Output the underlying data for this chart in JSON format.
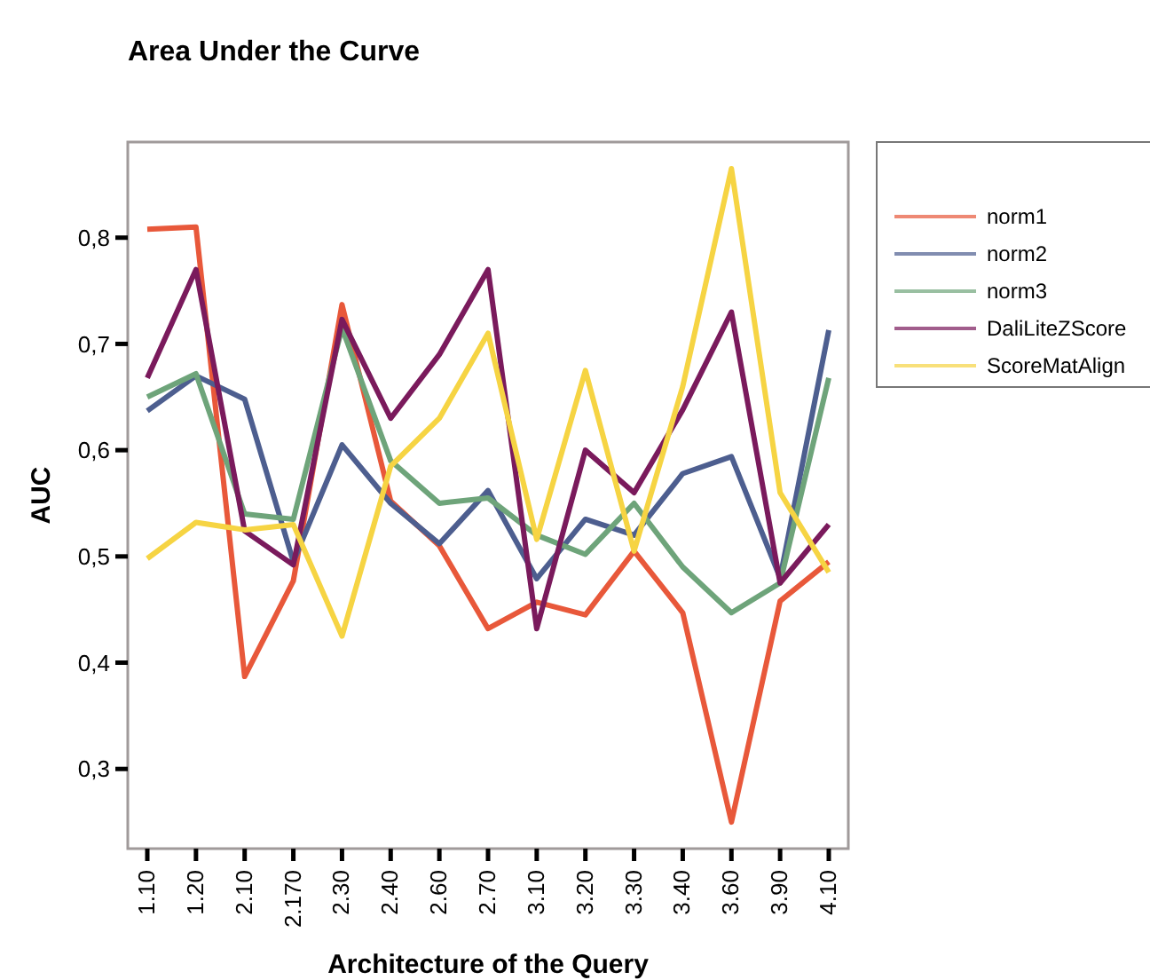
{
  "chart_data": {
    "type": "line",
    "title": "Area Under the Curve",
    "xlabel": "Architecture of the Query",
    "ylabel": "AUC",
    "categories": [
      "1.10",
      "1.20",
      "2.10",
      "2.170",
      "2.30",
      "2.40",
      "2.60",
      "2.70",
      "3.10",
      "3.20",
      "3.30",
      "3.40",
      "3.60",
      "3.90",
      "4.10"
    ],
    "ylim": [
      0.225,
      0.89
    ],
    "yticks": [
      {
        "value": 0.3,
        "label": "0,3"
      },
      {
        "value": 0.4,
        "label": "0,4"
      },
      {
        "value": 0.5,
        "label": "0,5"
      },
      {
        "value": 0.6,
        "label": "0,6"
      },
      {
        "value": 0.7,
        "label": "0,7"
      },
      {
        "value": 0.8,
        "label": "0,8"
      }
    ],
    "grid": false,
    "legend": "right",
    "marker": "none",
    "line_style": "solid",
    "series": [
      {
        "name": "norm1",
        "color": "#e8583a",
        "values": [
          0.808,
          0.81,
          0.387,
          0.477,
          0.737,
          0.552,
          0.51,
          0.432,
          0.457,
          0.445,
          0.505,
          0.447,
          0.25,
          0.458,
          0.495
        ]
      },
      {
        "name": "norm2",
        "color": "#4d5e8f",
        "values": [
          0.637,
          0.67,
          0.648,
          0.495,
          0.605,
          0.55,
          0.512,
          0.562,
          0.479,
          0.535,
          0.52,
          0.578,
          0.594,
          0.48,
          0.713
        ]
      },
      {
        "name": "norm3",
        "color": "#6ea47a",
        "values": [
          0.65,
          0.672,
          0.54,
          0.535,
          0.715,
          0.59,
          0.55,
          0.555,
          0.52,
          0.502,
          0.55,
          0.49,
          0.447,
          0.475,
          0.668
        ]
      },
      {
        "name": "DaliLiteZScore",
        "color": "#7a1a5c",
        "values": [
          0.668,
          0.77,
          0.524,
          0.492,
          0.723,
          0.63,
          0.69,
          0.77,
          0.432,
          0.6,
          0.56,
          0.638,
          0.73,
          0.475,
          0.53
        ]
      },
      {
        "name": "ScoreMatAlign",
        "color": "#f6d443",
        "values": [
          0.498,
          0.532,
          0.525,
          0.53,
          0.425,
          0.585,
          0.63,
          0.71,
          0.516,
          0.675,
          0.505,
          0.66,
          0.865,
          0.56,
          0.485
        ]
      }
    ]
  }
}
